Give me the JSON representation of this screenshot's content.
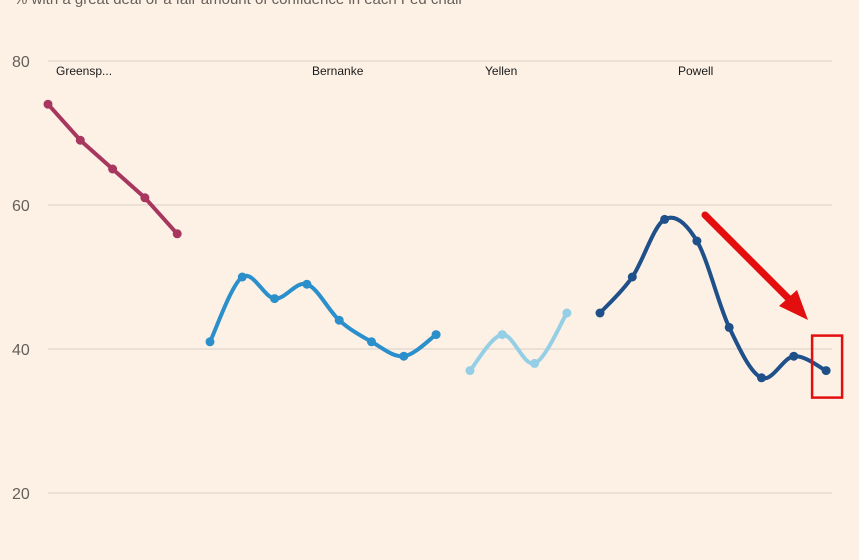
{
  "chart_data": {
    "type": "line",
    "subtitle": "% with a great deal or a fair amount of confidence in each Fed chair",
    "ylim": [
      15,
      85
    ],
    "yticks": [
      20,
      40,
      60,
      80
    ],
    "grid": true,
    "series": [
      {
        "name": "Greensp...",
        "color": "#a8375f",
        "values": [
          74,
          69,
          65,
          61,
          56
        ]
      },
      {
        "name": "Bernanke",
        "color": "#2b8fcb",
        "values": [
          41,
          50,
          47,
          49,
          44,
          41,
          39,
          42
        ]
      },
      {
        "name": "Yellen",
        "color": "#94cfe6",
        "values": [
          37,
          42,
          38,
          45
        ]
      },
      {
        "name": "Powell",
        "color": "#1f5089",
        "values": [
          45,
          50,
          58,
          55,
          43,
          36,
          39,
          37
        ]
      }
    ],
    "annotations": {
      "highlight": "last-point",
      "color": "#e30e0e"
    }
  }
}
